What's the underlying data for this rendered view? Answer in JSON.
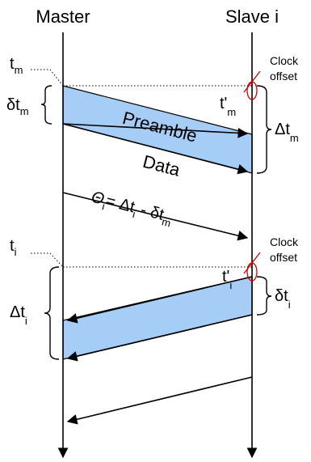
{
  "participants": {
    "master": "Master",
    "slave": "Slave i"
  },
  "labels": {
    "t": "t",
    "sub_m": "m",
    "sub_i": "i",
    "t_prime": "t'",
    "delta_t": "Δt",
    "delta_small_t": "δt",
    "theta": "Θ",
    "eq": "= Δt",
    "minus": " - δt",
    "clock": "Clock",
    "offset": "offset",
    "preamble": "Preamble",
    "data": "Data"
  }
}
